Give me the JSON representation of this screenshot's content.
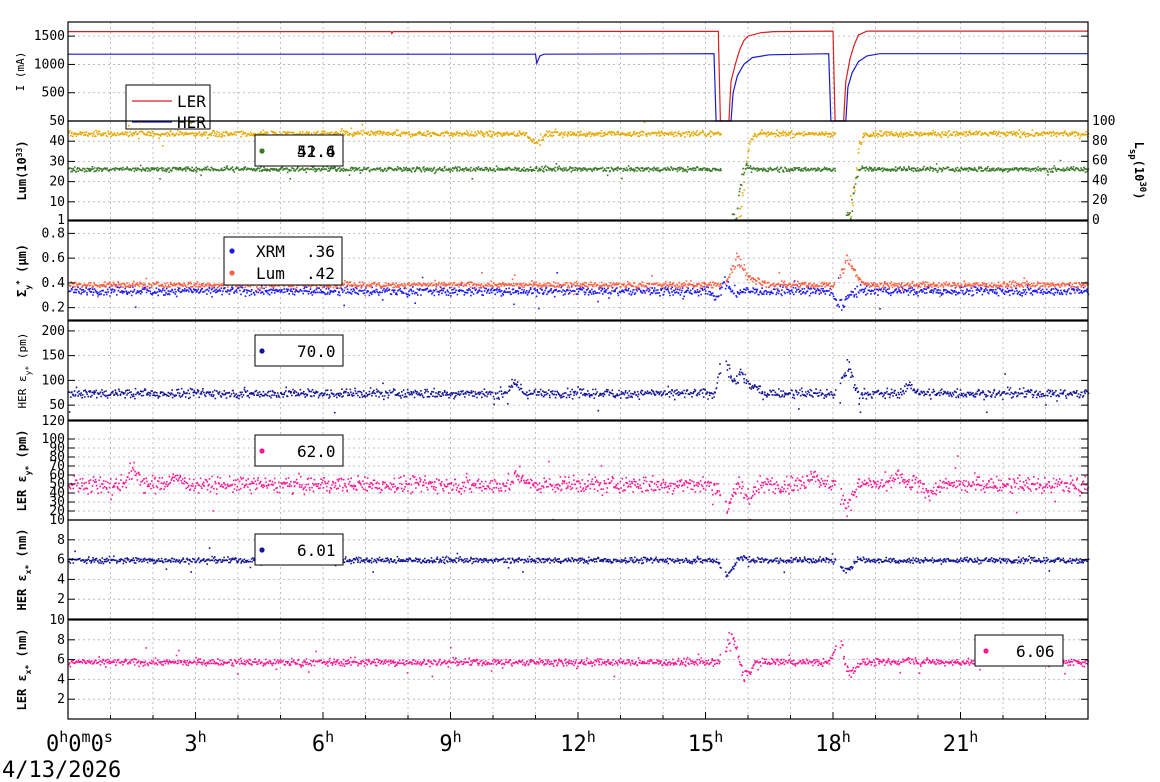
{
  "chart_data": {
    "type": "line",
    "x_axis": {
      "unit": "hours",
      "range": [
        0,
        24
      ],
      "tick_labels": [
        {
          "x": 0,
          "main": "0",
          "sup": "h",
          "main2": "0",
          "sup2": "m",
          "main3": "0",
          "sup3": "s"
        },
        {
          "x": 3,
          "main": "3",
          "sup": "h"
        },
        {
          "x": 6,
          "main": "6",
          "sup": "h"
        },
        {
          "x": 9,
          "main": "9",
          "sup": "h"
        },
        {
          "x": 12,
          "main": "12",
          "sup": "h"
        },
        {
          "x": 15,
          "main": "15",
          "sup": "h"
        },
        {
          "x": 18,
          "main": "18",
          "sup": "h"
        },
        {
          "x": 21,
          "main": "21",
          "sup": "h"
        }
      ],
      "date": "4/13/2026"
    },
    "panels": [
      {
        "id": "current",
        "ylabel": "I (mA)",
        "ylim": [
          0,
          1750
        ],
        "yticks": [
          500,
          1000,
          1500
        ],
        "legend": {
          "position": "bottom-left",
          "entries": [
            {
              "label": "LER",
              "color": "#d62020"
            },
            {
              "label": "HER",
              "color": "#1a1ad0"
            }
          ]
        },
        "series": [
          {
            "name": "LER",
            "color": "#d62020",
            "style": "line",
            "points": [
              [
                0,
                1580
              ],
              [
                7.6,
                1580
              ],
              [
                7.62,
                1545
              ],
              [
                7.65,
                1580
              ],
              [
                15.3,
                1585
              ],
              [
                15.35,
                0
              ],
              [
                15.55,
                0
              ],
              [
                15.6,
                700
              ],
              [
                15.7,
                1000
              ],
              [
                15.8,
                1250
              ],
              [
                15.9,
                1420
              ],
              [
                16.0,
                1500
              ],
              [
                16.3,
                1560
              ],
              [
                16.6,
                1580
              ],
              [
                18.0,
                1590
              ],
              [
                18.05,
                0
              ],
              [
                18.25,
                0
              ],
              [
                18.3,
                700
              ],
              [
                18.4,
                1100
              ],
              [
                18.5,
                1350
              ],
              [
                18.6,
                1520
              ],
              [
                18.8,
                1590
              ],
              [
                24,
                1590
              ]
            ]
          },
          {
            "name": "HER",
            "color": "#1a1ad0",
            "style": "line",
            "points": [
              [
                0,
                1180
              ],
              [
                11.0,
                1180
              ],
              [
                11.03,
                1020
              ],
              [
                11.1,
                1150
              ],
              [
                11.2,
                1180
              ],
              [
                15.2,
                1190
              ],
              [
                15.25,
                0
              ],
              [
                15.6,
                0
              ],
              [
                15.65,
                500
              ],
              [
                15.75,
                800
              ],
              [
                15.9,
                1000
              ],
              [
                16.1,
                1120
              ],
              [
                16.5,
                1170
              ],
              [
                17.9,
                1190
              ],
              [
                17.95,
                0
              ],
              [
                18.3,
                0
              ],
              [
                18.35,
                600
              ],
              [
                18.45,
                850
              ],
              [
                18.6,
                1050
              ],
              [
                18.8,
                1150
              ],
              [
                19.1,
                1190
              ],
              [
                24,
                1190
              ]
            ]
          }
        ]
      },
      {
        "id": "luminosity",
        "ylabel": "Lum(10",
        "ylabel_sup": "33",
        "ylabel_end": ")",
        "ylim": [
          1,
          50
        ],
        "yticks": [
          1,
          10,
          20,
          30,
          40,
          50
        ],
        "y2label": "L",
        "y2label_sub": "sp",
        "y2label_mid": "(10",
        "y2label_sup": "30",
        "y2label_end": ")",
        "y2lim": [
          0,
          100
        ],
        "y2ticks": [
          0,
          20,
          40,
          60,
          80,
          100
        ],
        "legend": {
          "entries": [
            {
              "label": "52.6",
              "color": "#e6a800"
            },
            {
              "label": "41.4",
              "color": "#3a7a2a"
            }
          ]
        },
        "series": [
          {
            "name": "Lum",
            "color": "#e6a800",
            "base": 44,
            "noise": 1.2,
            "gaps": [
              [
                15.35,
                15.7
              ],
              [
                18.05,
                18.35
              ]
            ],
            "features": [
              [
                11.0,
                -6
              ],
              [
                15.7,
                -40
              ],
              [
                15.8,
                -25
              ],
              [
                15.9,
                -8
              ],
              [
                18.35,
                -40
              ],
              [
                18.45,
                -20
              ]
            ]
          },
          {
            "name": "Lsp",
            "color": "#3a7a2a",
            "base": 26.5,
            "noise": 1.0,
            "gaps": [
              [
                15.35,
                15.6
              ],
              [
                18.05,
                18.3
              ]
            ],
            "features": [
              [
                15.6,
                -24
              ],
              [
                15.7,
                -18
              ],
              [
                15.85,
                3
              ],
              [
                18.3,
                -24
              ],
              [
                18.4,
                -14
              ],
              [
                18.5,
                3
              ]
            ]
          }
        ]
      },
      {
        "id": "sigma_y",
        "ylabel": "Σ",
        "ylabel_sub": "y",
        "ylabel_sup": "*",
        "ylabel_end": " (μm)",
        "ylim": [
          0.1,
          0.9
        ],
        "yticks": [
          0.2,
          0.4,
          0.6,
          0.8
        ],
        "legend": {
          "entries": [
            {
              "name": "XRM",
              "value": ".36",
              "color": "#1a1aff"
            },
            {
              "name": "Lum",
              "value": ".42",
              "color": "#ff6040"
            }
          ]
        },
        "series": [
          {
            "name": "XRM",
            "color": "#1a1aff",
            "base": 0.34,
            "noise": 0.03,
            "gaps": [],
            "features": [
              [
                15.3,
                -0.12
              ],
              [
                15.45,
                0.22
              ],
              [
                15.55,
                -0.1
              ],
              [
                18.1,
                -0.1
              ],
              [
                18.25,
                -0.08
              ]
            ]
          },
          {
            "name": "Lum",
            "color": "#ff6040",
            "base": 0.39,
            "noise": 0.02,
            "gaps": [
              [
                15.35,
                15.45
              ],
              [
                18.05,
                18.15
              ]
            ],
            "features": [
              [
                15.7,
                0.25
              ],
              [
                15.9,
                0.12
              ],
              [
                16.2,
                0.05
              ],
              [
                18.3,
                0.25
              ],
              [
                18.5,
                0.1
              ]
            ]
          }
        ]
      },
      {
        "id": "her_ey",
        "ylabel": "HER ε",
        "ylabel_sub": "y*",
        "ylabel_end": " (pm)",
        "ylim": [
          20,
          220
        ],
        "yticks": [
          50,
          100,
          150,
          200
        ],
        "legend": {
          "entries": [
            {
              "label": "70.0",
              "color": "#141496"
            }
          ]
        },
        "series": [
          {
            "name": "HER ey",
            "color": "#141496",
            "base": 75,
            "noise": 8,
            "gaps": [
              [
                15.35,
                15.45
              ],
              [
                18.05,
                18.15
              ]
            ],
            "features": [
              [
                10.5,
                25
              ],
              [
                15.45,
                120
              ],
              [
                15.55,
                -30
              ],
              [
                15.8,
                60
              ],
              [
                16.1,
                20
              ],
              [
                18.35,
                90
              ],
              [
                18.45,
                -25
              ],
              [
                19.8,
                20
              ]
            ]
          }
        ]
      },
      {
        "id": "ler_ey",
        "ylabel": "LER ε",
        "ylabel_sub": "y*",
        "ylabel_end": " (pm)",
        "ylim": [
          10,
          120
        ],
        "yticks": [
          10,
          20,
          30,
          40,
          50,
          60,
          70,
          80,
          90,
          100,
          120
        ],
        "legend": {
          "entries": [
            {
              "label": "62.0",
              "color": "#ff1493"
            }
          ]
        },
        "series": [
          {
            "name": "LER ey",
            "color": "#ff1493",
            "base": 50,
            "noise": 8,
            "gaps": [
              [
                15.35,
                15.45
              ],
              [
                18.05,
                18.15
              ]
            ],
            "features": [
              [
                1.5,
                20
              ],
              [
                2.5,
                12
              ],
              [
                10.6,
                15
              ],
              [
                15.5,
                -35
              ],
              [
                16.0,
                -20
              ],
              [
                17.5,
                20
              ],
              [
                18.3,
                -30
              ],
              [
                19.5,
                15
              ],
              [
                20.3,
                -8
              ]
            ]
          }
        ]
      },
      {
        "id": "her_ex",
        "ylabel": "HER ε",
        "ylabel_sub": "x*",
        "ylabel_end": " (nm)",
        "ylim": [
          0,
          10
        ],
        "yticks": [
          2,
          4,
          6,
          8
        ],
        "legend": {
          "entries": [
            {
              "label": "6.01",
              "color": "#141496"
            }
          ]
        },
        "series": [
          {
            "name": "HER ex",
            "color": "#141496",
            "base": 6.0,
            "noise": 0.25,
            "gaps": [
              [
                15.35,
                15.45
              ],
              [
                18.05,
                18.15
              ]
            ],
            "features": [
              [
                15.5,
                -2
              ],
              [
                15.8,
                0.4
              ],
              [
                18.3,
                -1.5
              ],
              [
                18.6,
                0.2
              ]
            ]
          }
        ]
      },
      {
        "id": "ler_ex",
        "ylabel": "LER ε",
        "ylabel_sub": "x*",
        "ylabel_end": " (nm)",
        "ylim": [
          0,
          10
        ],
        "yticks": [
          2,
          4,
          6,
          8,
          10
        ],
        "legend": {
          "entries": [
            {
              "label": "6.06",
              "color": "#ff1493"
            }
          ]
        },
        "series": [
          {
            "name": "LER ex",
            "color": "#ff1493",
            "base": 5.8,
            "noise": 0.3,
            "gaps": [
              [
                15.35,
                15.45
              ],
              [
                18.05,
                18.15
              ]
            ],
            "features": [
              [
                15.55,
                3
              ],
              [
                15.75,
                1.5
              ],
              [
                15.9,
                -2.5
              ],
              [
                18.15,
                3
              ],
              [
                18.35,
                -2
              ],
              [
                19.8,
                0.4
              ]
            ]
          }
        ]
      }
    ]
  }
}
